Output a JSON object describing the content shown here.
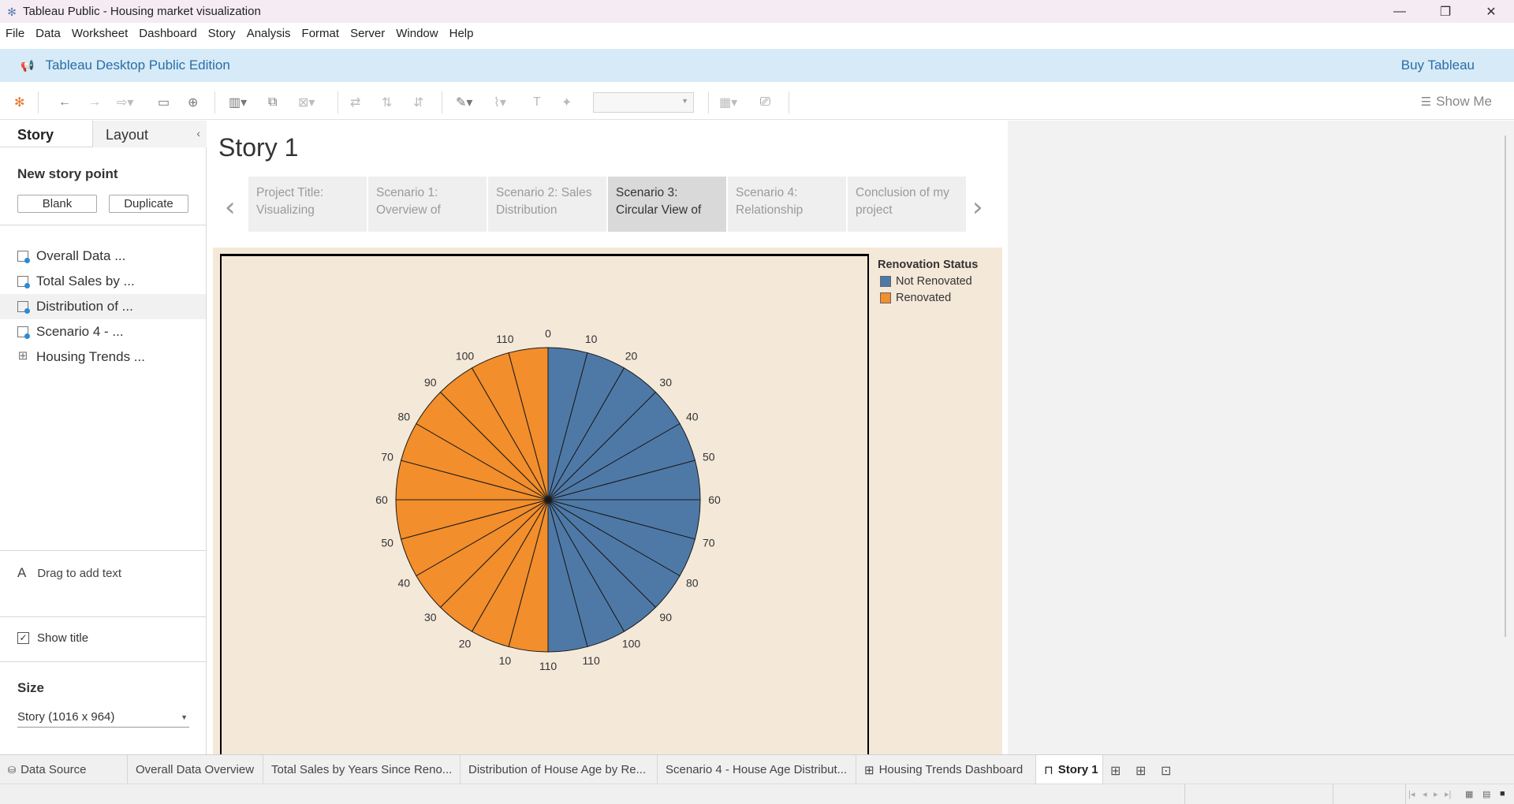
{
  "window": {
    "title": "Tableau Public - Housing market visualization",
    "controls": [
      "minimize",
      "restore",
      "close"
    ]
  },
  "menubar": [
    "File",
    "Data",
    "Worksheet",
    "Dashboard",
    "Story",
    "Analysis",
    "Format",
    "Server",
    "Window",
    "Help"
  ],
  "banner": {
    "edition": "Tableau Desktop Public Edition",
    "buy": "Buy Tableau"
  },
  "toolbar": {
    "show_me": "Show Me"
  },
  "left_pane": {
    "tabs": {
      "story": "Story",
      "layout": "Layout"
    },
    "new_story_point": "New story point",
    "blank_button": "Blank",
    "duplicate_button": "Duplicate",
    "sheets": [
      {
        "label": "Overall Data ...",
        "type": "worksheet"
      },
      {
        "label": "Total Sales by ...",
        "type": "worksheet"
      },
      {
        "label": "Distribution of ...",
        "type": "worksheet"
      },
      {
        "label": "Scenario 4 - ...",
        "type": "worksheet"
      },
      {
        "label": "Housing Trends ...",
        "type": "dashboard"
      }
    ],
    "drag_text": "Drag to add text",
    "show_title": "Show title",
    "size_header": "Size",
    "size_value": "Story (1016 x 964)"
  },
  "story": {
    "title": "Story 1",
    "points": [
      {
        "line1": "Project Title:",
        "line2": "Visualizing",
        "active": false
      },
      {
        "line1": "Scenario 1:",
        "line2": "Overview of",
        "active": false
      },
      {
        "line1": "Scenario 2: Sales",
        "line2": "Distribution",
        "active": false
      },
      {
        "line1": "Scenario 3:",
        "line2": "Circular View of",
        "active": true
      },
      {
        "line1": "Scenario 4:",
        "line2": "Relationship",
        "active": false
      },
      {
        "line1": "Conclusion of my",
        "line2": "project",
        "active": false
      }
    ]
  },
  "legend": {
    "title": "Renovation Status",
    "items": [
      {
        "label": "Not Renovated",
        "color": "#4e79a7"
      },
      {
        "label": "Renovated",
        "color": "#f28e2b"
      }
    ]
  },
  "chart_data": {
    "type": "pie",
    "slices": [
      {
        "group": "Not Renovated",
        "labels": [
          "0",
          "10",
          "20",
          "30",
          "40",
          "50",
          "60",
          "70",
          "80",
          "90",
          "100",
          "110"
        ]
      },
      {
        "group": "Renovated",
        "labels": [
          "110",
          "10",
          "20",
          "30",
          "40",
          "50",
          "60",
          "70",
          "80",
          "90",
          "100",
          "110"
        ]
      }
    ],
    "colors": {
      "Not Renovated": "#4e79a7",
      "Renovated": "#f28e2b"
    }
  },
  "bottom_tabs": [
    {
      "label": "Data Source",
      "type": "datasource",
      "active": false
    },
    {
      "label": "Overall Data Overview",
      "type": "sheet",
      "active": false
    },
    {
      "label": "Total Sales by Years Since Reno...",
      "type": "sheet",
      "active": false
    },
    {
      "label": "Distribution of House Age by Re...",
      "type": "sheet",
      "active": false
    },
    {
      "label": "Scenario 4 - House Age Distribut...",
      "type": "sheet",
      "active": false
    },
    {
      "label": "Housing Trends Dashboard",
      "type": "dashboard",
      "active": false
    },
    {
      "label": "Story 1",
      "type": "story",
      "active": true
    }
  ]
}
